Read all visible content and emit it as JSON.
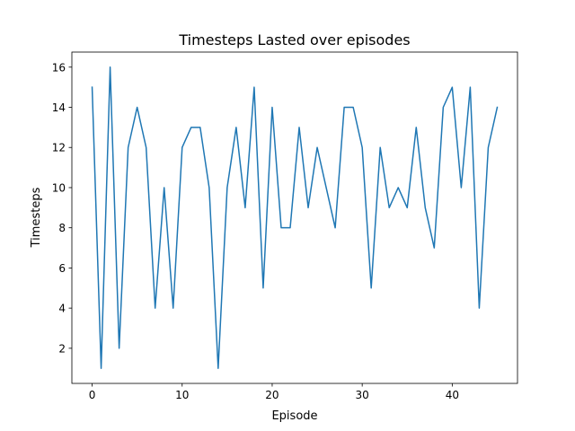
{
  "chart_data": {
    "type": "line",
    "title": "Timesteps Lasted over episodes",
    "xlabel": "Episode",
    "ylabel": "Timesteps",
    "xlim": [
      -2.25,
      47.25
    ],
    "ylim": [
      0.25,
      16.75
    ],
    "xticks": [
      0,
      10,
      20,
      30,
      40
    ],
    "yticks": [
      2,
      4,
      6,
      8,
      10,
      12,
      14,
      16
    ],
    "grid": false,
    "legend": "none",
    "series": [
      {
        "color": "#1f77b4",
        "x": [
          0,
          1,
          2,
          3,
          4,
          5,
          6,
          7,
          8,
          9,
          10,
          11,
          12,
          13,
          14,
          15,
          16,
          17,
          18,
          19,
          20,
          21,
          22,
          23,
          24,
          25,
          26,
          27,
          28,
          29,
          30,
          31,
          32,
          33,
          34,
          35,
          36,
          37,
          38,
          39,
          40,
          41,
          42,
          43,
          44,
          45
        ],
        "y": [
          15,
          1,
          16,
          2,
          12,
          14,
          12,
          4,
          10,
          4,
          12,
          13,
          13,
          10,
          1,
          10,
          13,
          9,
          15,
          5,
          14,
          8,
          8,
          13,
          9,
          12,
          10,
          8,
          14,
          14,
          12,
          5,
          12,
          9,
          10,
          9,
          13,
          9,
          7,
          14,
          15,
          10,
          15,
          4,
          12,
          14
        ]
      }
    ]
  }
}
